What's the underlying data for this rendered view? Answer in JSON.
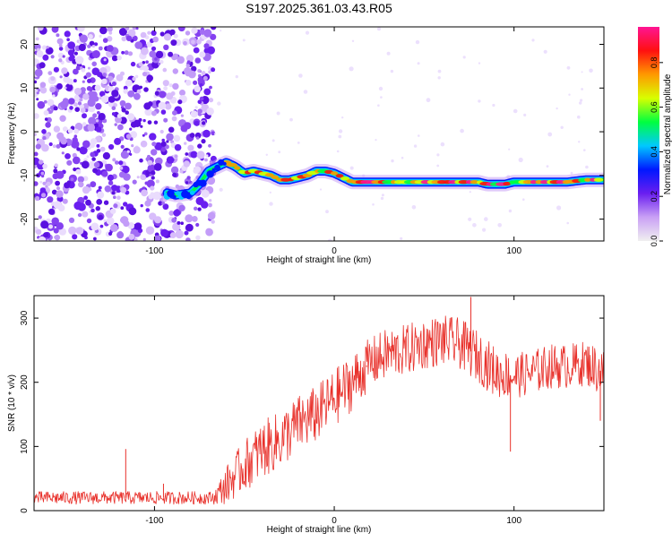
{
  "title": "S197.2025.361.03.43.R05",
  "colors": {
    "spectro_noise": "#7a2bf0",
    "snr_line": "#e8302a",
    "axis": "#000000"
  },
  "chart_data": [
    {
      "type": "heatmap",
      "name": "spectrogram",
      "xlabel": "Height of straight line (km)",
      "ylabel": "Frequency (Hz)",
      "xlim": [
        -167,
        150
      ],
      "ylim": [
        -25,
        24
      ],
      "xticks": [
        -100,
        0,
        100
      ],
      "yticks": [
        -20,
        -10,
        0,
        10,
        20
      ],
      "noise_region_x": [
        -167,
        -67
      ],
      "signal_track": {
        "x": [
          -93,
          -88,
          -80,
          -75,
          -70,
          -65,
          -60,
          -55,
          -50,
          -45,
          -40,
          -35,
          -30,
          -25,
          -20,
          -15,
          -10,
          -5,
          0,
          5,
          10,
          20,
          40,
          60,
          80,
          85,
          90,
          95,
          100,
          110,
          120,
          130,
          140,
          150
        ],
        "freq": [
          -14,
          -14.5,
          -14,
          -12,
          -9,
          -8,
          -7,
          -8,
          -9.5,
          -9,
          -9.5,
          -10,
          -11,
          -11,
          -10.5,
          -10,
          -9,
          -9,
          -9.5,
          -10.5,
          -11.5,
          -11.5,
          -11.5,
          -11.5,
          -11.5,
          -12,
          -12,
          -12,
          -11.5,
          -11.5,
          -11.5,
          -11.5,
          -11,
          -11
        ]
      },
      "colorbar": {
        "label": "Normalized spectral amplitude",
        "ticks": [
          0.0,
          0.2,
          0.4,
          0.6,
          0.8
        ],
        "tick_labels": [
          "0.0",
          "0.2",
          "0.4",
          "0.6",
          "0.8"
        ],
        "range": [
          0,
          0.96
        ],
        "colors": [
          "#f0f0f0",
          "#c9a0f5",
          "#6a1ef0",
          "#0018ff",
          "#00c8ff",
          "#00ff40",
          "#d8ff00",
          "#ff9900",
          "#ff1010",
          "#ff1493"
        ]
      }
    },
    {
      "type": "line",
      "name": "snr",
      "xlabel": "Height of straight line (km)",
      "ylabel": "SNR (10 * v/v)",
      "xlim": [
        -167,
        150
      ],
      "ylim": [
        0,
        335
      ],
      "xticks": [
        -100,
        0,
        100
      ],
      "yticks": [
        0,
        100,
        200,
        300
      ],
      "trend": {
        "x": [
          -167,
          -140,
          -120,
          -100,
          -80,
          -67,
          -60,
          -50,
          -40,
          -30,
          -20,
          -10,
          0,
          10,
          20,
          30,
          40,
          50,
          60,
          70,
          80,
          90,
          100,
          110,
          120,
          130,
          140,
          150
        ],
        "mean": [
          20,
          20,
          20,
          20,
          20,
          20,
          40,
          70,
          95,
          110,
          135,
          150,
          175,
          200,
          230,
          245,
          250,
          260,
          265,
          260,
          240,
          215,
          210,
          215,
          225,
          225,
          230,
          215
        ],
        "spread": [
          10,
          10,
          10,
          10,
          10,
          10,
          30,
          40,
          45,
          45,
          45,
          45,
          45,
          45,
          40,
          40,
          40,
          40,
          40,
          40,
          40,
          40,
          35,
          35,
          35,
          35,
          35,
          40
        ]
      },
      "spikes": [
        {
          "x": -116,
          "y": 96
        },
        {
          "x": -95,
          "y": 42
        },
        {
          "x": 18,
          "y": 226
        },
        {
          "x": 76,
          "y": 333
        },
        {
          "x": 98,
          "y": 92
        },
        {
          "x": 148,
          "y": 140
        }
      ]
    }
  ]
}
